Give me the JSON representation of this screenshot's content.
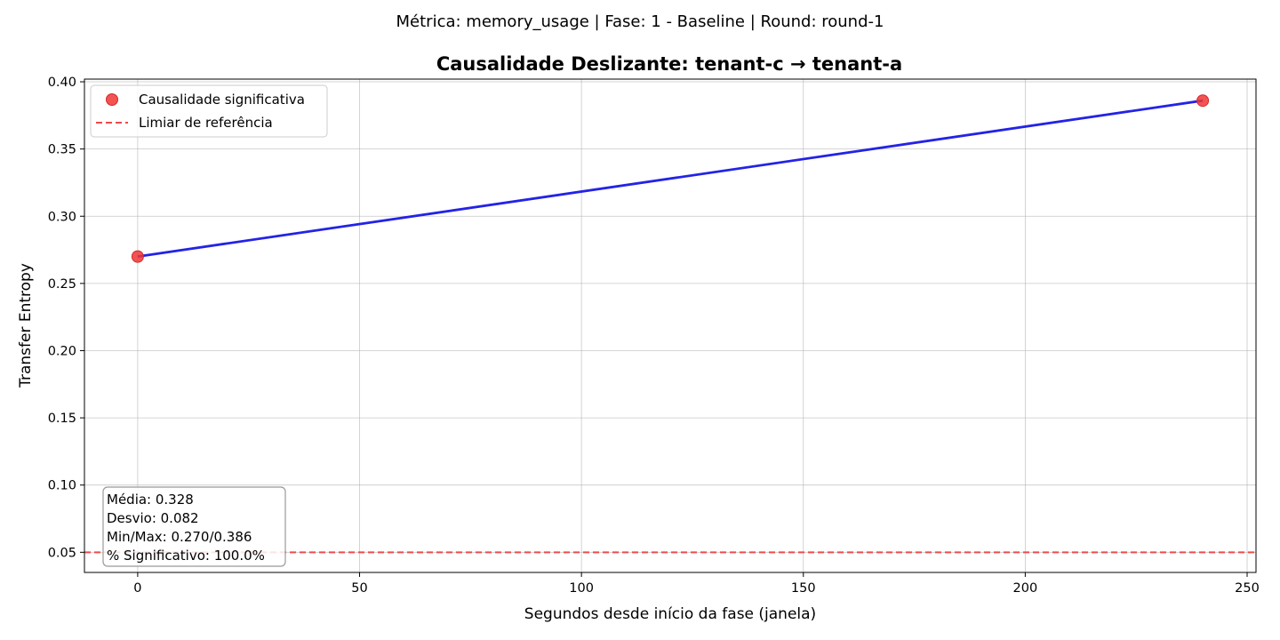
{
  "suptitle": "Métrica: memory_usage | Fase: 1 - Baseline | Round: round-1",
  "chart_data": {
    "type": "line",
    "title": "Causalidade Deslizante: tenant-c → tenant-a",
    "xlabel": "Segundos desde início da fase (janela)",
    "ylabel": "Transfer Entropy",
    "xlim": [
      -12,
      252
    ],
    "ylim": [
      0.035,
      0.402
    ],
    "x_ticks": [
      0,
      50,
      100,
      150,
      200,
      250
    ],
    "y_ticks": [
      0.05,
      0.1,
      0.15,
      0.2,
      0.25,
      0.3,
      0.35,
      0.4
    ],
    "grid": true,
    "series": [
      {
        "values": [
          {
            "x": 0,
            "y": 0.27
          },
          {
            "x": 240,
            "y": 0.386
          }
        ],
        "color": "#2323e6"
      }
    ],
    "significant_points": {
      "name": "Causalidade significativa",
      "color": "#f03535",
      "points": [
        {
          "x": 0,
          "y": 0.27
        },
        {
          "x": 240,
          "y": 0.386
        }
      ]
    },
    "reference_line": {
      "name": "Limiar de referência",
      "y": 0.05,
      "color": "#f04a4a"
    },
    "legend": {
      "position": "upper-left"
    },
    "stats_box": [
      "Média: 0.328",
      "Desvio: 0.082",
      "Min/Max: 0.270/0.386",
      "% Significativo: 100.0%"
    ]
  }
}
